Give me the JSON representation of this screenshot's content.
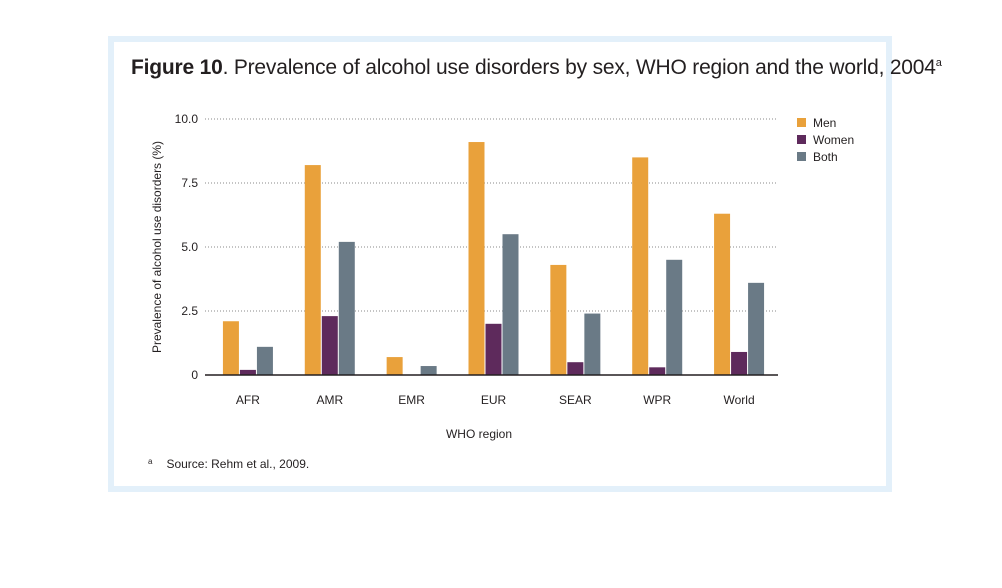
{
  "figure": {
    "title_bold": "Figure 10",
    "title_rest": ". Prevalence of alcohol use disorders by sex, WHO region and the world, 2004",
    "title_sup": "a",
    "footnote_mark": "a",
    "footnote_text": "Source: Rehm et al., 2009."
  },
  "chart_data": {
    "type": "bar",
    "title": "Prevalence of alcohol use disorders by sex, WHO region and the world, 2004",
    "xlabel": "WHO region",
    "ylabel": "Prevalence of alcohol use disorders (%)",
    "ylim": [
      0,
      10
    ],
    "yticks": [
      "0",
      "2.5",
      "5.0",
      "7.5",
      "10.0"
    ],
    "ytick_values": [
      0,
      2.5,
      5,
      7.5,
      10
    ],
    "grid": "horizontal dotted",
    "legend_position": "right",
    "categories": [
      "AFR",
      "AMR",
      "EMR",
      "EUR",
      "SEAR",
      "WPR",
      "World"
    ],
    "series": [
      {
        "name": "Men",
        "color": "#e9a13b",
        "values": [
          2.1,
          8.2,
          0.7,
          9.1,
          4.3,
          8.5,
          6.3
        ]
      },
      {
        "name": "Women",
        "color": "#5e2a5c",
        "values": [
          0.2,
          2.3,
          0.0,
          2.0,
          0.5,
          0.3,
          0.9
        ]
      },
      {
        "name": "Both",
        "color": "#6a7a86",
        "values": [
          1.1,
          5.2,
          0.35,
          5.5,
          2.4,
          4.5,
          3.6
        ]
      }
    ]
  }
}
